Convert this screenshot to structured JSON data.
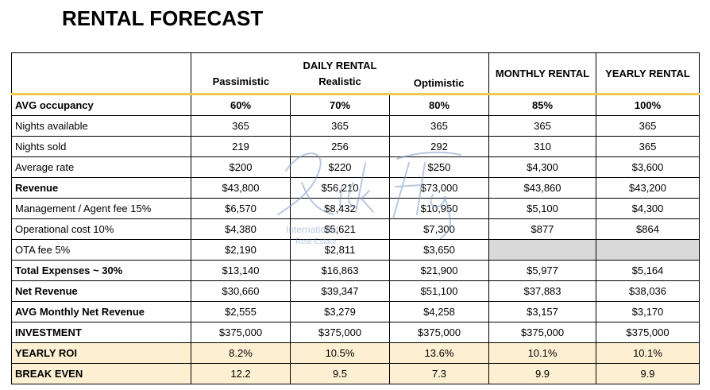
{
  "title": "RENTAL FORECAST",
  "headers": {
    "daily_rental": "DAILY RENTAL",
    "pessimistic": "Passimistic",
    "realistic": "Realistic",
    "optimistic": "Optimistic",
    "monthly_rental": "MONTHLY RENTAL",
    "yearly_rental": "YEARLY RENTAL"
  },
  "rows": [
    {
      "label": "AVG occupancy",
      "bold": true,
      "values": [
        "60%",
        "70%",
        "80%",
        "85%",
        "100%"
      ]
    },
    {
      "label": "Nights available",
      "bold": false,
      "values": [
        "365",
        "365",
        "365",
        "365",
        "365"
      ]
    },
    {
      "label": "Nights sold",
      "bold": false,
      "values": [
        "219",
        "256",
        "292",
        "310",
        "365"
      ]
    },
    {
      "label": "Average rate",
      "bold": false,
      "values": [
        "$200",
        "$220",
        "$250",
        "$4,300",
        "$3,600"
      ]
    },
    {
      "label": "Revenue",
      "bold": true,
      "values": [
        "$43,800",
        "$56,210",
        "$73,000",
        "$43,860",
        "$43,200"
      ]
    },
    {
      "label": "Management / Agent fee 15%",
      "bold": false,
      "values": [
        "$6,570",
        "$8,432",
        "$10,950",
        "$5,100",
        "$4,300"
      ]
    },
    {
      "label": "Operational cost 10%",
      "bold": false,
      "values": [
        "$4,380",
        "$5,621",
        "$7,300",
        "$877",
        "$864"
      ]
    },
    {
      "label": "OTA fee 5%",
      "bold": false,
      "values": [
        "$2,190",
        "$2,811",
        "$3,650",
        "",
        ""
      ]
    },
    {
      "label": "Total Expenses ~ 30%",
      "bold": true,
      "values": [
        "$13,140",
        "$16,863",
        "$21,900",
        "$5,977",
        "$5,164"
      ]
    },
    {
      "label": "Net Revenue",
      "bold": true,
      "values": [
        "$30,660",
        "$39,347",
        "$51,100",
        "$37,883",
        "$38,036"
      ]
    },
    {
      "label": "AVG Monthly Net Revenue",
      "bold": true,
      "values": [
        "$2,555",
        "$3,279",
        "$4,258",
        "$3,157",
        "$3,170"
      ]
    },
    {
      "label": "INVESTMENT",
      "bold": true,
      "values": [
        "$375,000",
        "$375,000",
        "$375,000",
        "$375,000",
        "$375,000"
      ]
    },
    {
      "label": "YEARLY ROI",
      "bold": true,
      "values": [
        "8.2%",
        "10.5%",
        "13.6%",
        "10.1%",
        "10.1%"
      ]
    },
    {
      "label": "BREAK EVEN",
      "bold": true,
      "values": [
        "12.2",
        "9.5",
        "7.3",
        "9.9",
        "9.9"
      ]
    }
  ],
  "watermark": {
    "signature": "Rick Flay",
    "line1": "International",
    "line2": "Real Estate",
    "color": "#7f9cc4"
  }
}
